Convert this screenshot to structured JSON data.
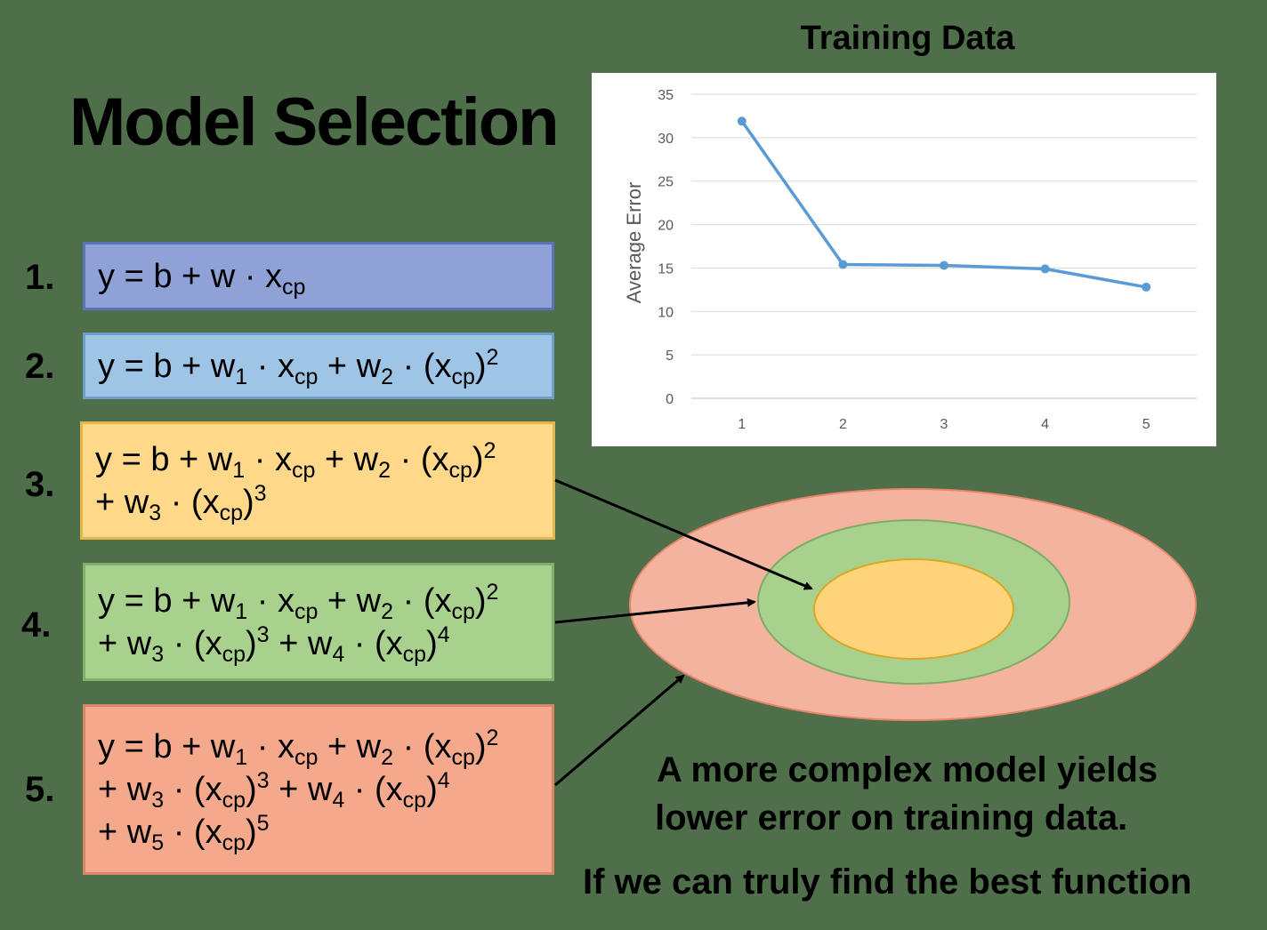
{
  "title": "Model Selection",
  "models": [
    {
      "number": "1.",
      "color": "#8fa2d8",
      "border": "#5b73b8"
    },
    {
      "number": "2.",
      "color": "#9ec4e6",
      "border": "#6f9fc9"
    },
    {
      "number": "3.",
      "color": "#ffd889",
      "border": "#e0b84f"
    },
    {
      "number": "4.",
      "color": "#a9d18e",
      "border": "#82b06a"
    },
    {
      "number": "5.",
      "color": "#f4a98c",
      "border": "#d9856a"
    }
  ],
  "eq": {
    "y": "y",
    "eq": "=",
    "b": "b",
    "plus": "+",
    "dot": "·",
    "w": "w",
    "x": "x",
    "cp": "cp",
    "lp": "(",
    "rp": ")",
    "n1": "1",
    "n2": "2",
    "n3": "3",
    "n4": "4",
    "n5": "5"
  },
  "chart_data": {
    "type": "line",
    "title": "Training Data",
    "xlabel": "",
    "ylabel": "Average Error",
    "x": [
      1,
      2,
      3,
      4,
      5
    ],
    "y": [
      31.9,
      15.4,
      15.3,
      14.9,
      12.8
    ],
    "xlim": [
      0.5,
      5.5
    ],
    "ylim": [
      0,
      35
    ],
    "yticks": [
      0,
      5,
      10,
      15,
      20,
      25,
      30,
      35
    ],
    "xticks": [
      1,
      2,
      3,
      4,
      5
    ],
    "grid": "horizontal",
    "color": "#5b9bd5"
  },
  "venn": {
    "outer_color": "#f4b39f",
    "middle_color": "#a9d18e",
    "inner_color": "#ffd37a"
  },
  "caption": {
    "line1": "A more complex model yields",
    "line2": "lower error on training data.",
    "line3": "If we can truly find the best function"
  }
}
